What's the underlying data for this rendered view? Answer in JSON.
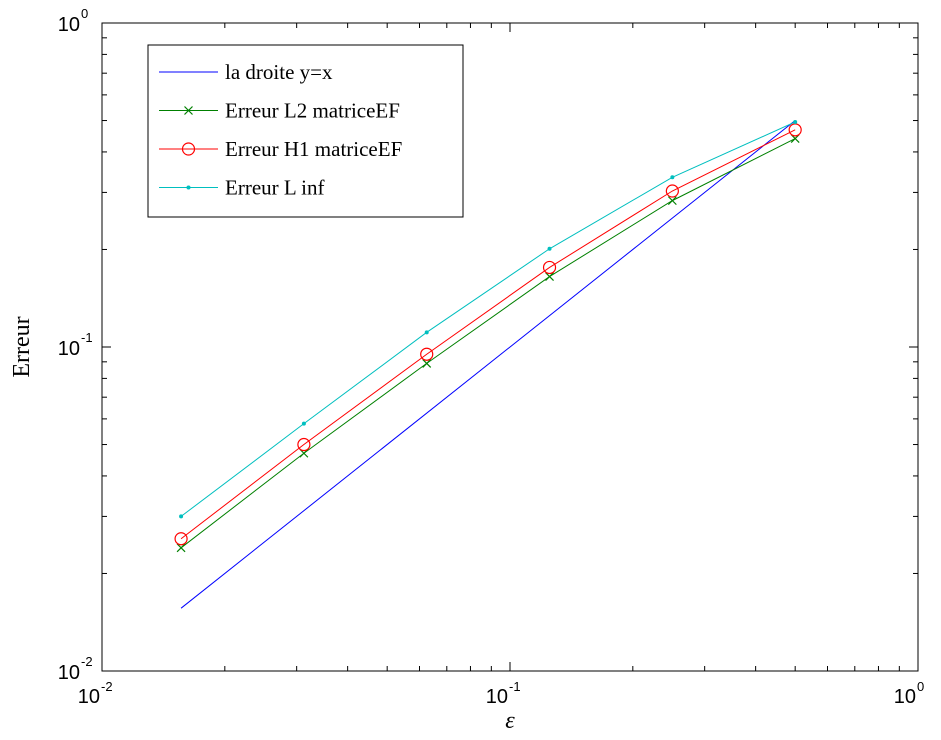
{
  "chart_data": {
    "type": "line",
    "xlabel": "ε",
    "ylabel": "Erreur",
    "xscale": "log",
    "yscale": "log",
    "xlim": [
      0.01,
      1
    ],
    "ylim": [
      0.01,
      1
    ],
    "x_ticks": [
      {
        "base": "10",
        "exp": "-2",
        "value": 0.01
      },
      {
        "base": "10",
        "exp": "-1",
        "value": 0.1
      },
      {
        "base": "10",
        "exp": "0",
        "value": 1
      }
    ],
    "y_ticks": [
      {
        "base": "10",
        "exp": "-2",
        "value": 0.01
      },
      {
        "base": "10",
        "exp": "-1",
        "value": 0.1
      },
      {
        "base": "10",
        "exp": "0",
        "value": 1
      }
    ],
    "legend_position": "top-left",
    "grid": false,
    "series": [
      {
        "name": "la droite y=x",
        "color": "#0000ff",
        "marker": "none",
        "x": [
          0.015625,
          0.5
        ],
        "y": [
          0.015625,
          0.5
        ]
      },
      {
        "name": "Erreur L2 matriceEF",
        "color": "#008000",
        "marker": "x",
        "x": [
          0.015625,
          0.03125,
          0.0625,
          0.125,
          0.25,
          0.5
        ],
        "y": [
          0.024,
          0.047,
          0.089,
          0.165,
          0.283,
          0.44
        ]
      },
      {
        "name": "Erreur H1 matriceEF",
        "color": "#ff0000",
        "marker": "o",
        "x": [
          0.015625,
          0.03125,
          0.0625,
          0.125,
          0.25,
          0.5
        ],
        "y": [
          0.0256,
          0.05,
          0.095,
          0.176,
          0.303,
          0.468
        ]
      },
      {
        "name": "Erreur L inf",
        "color": "#00bfbf",
        "marker": ".",
        "x": [
          0.015625,
          0.03125,
          0.0625,
          0.125,
          0.25,
          0.5
        ],
        "y": [
          0.03,
          0.058,
          0.111,
          0.201,
          0.334,
          0.495
        ]
      }
    ]
  }
}
